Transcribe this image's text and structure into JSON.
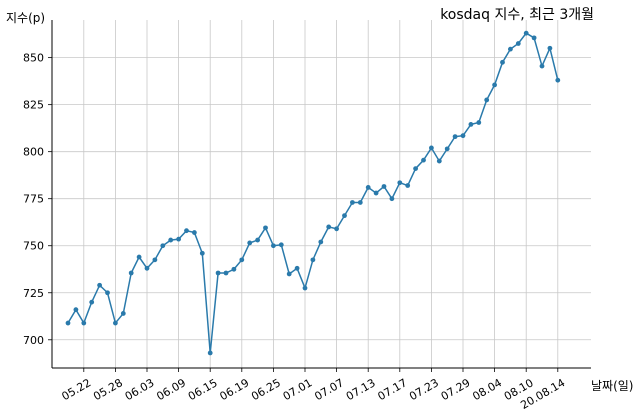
{
  "chart_data": {
    "type": "line",
    "title": "kosdaq 지수, 최근 3개월",
    "ylabel": "지수(p)",
    "xlabel": "날짜(일)",
    "ylim": [
      685,
      870
    ],
    "yticks": [
      700,
      725,
      750,
      775,
      800,
      825,
      850
    ],
    "xticks": [
      {
        "index": 2,
        "label": "05.22"
      },
      {
        "index": 6,
        "label": "05.28"
      },
      {
        "index": 10,
        "label": "06.03"
      },
      {
        "index": 14,
        "label": "06.09"
      },
      {
        "index": 18,
        "label": "06.15"
      },
      {
        "index": 22,
        "label": "06.19"
      },
      {
        "index": 26,
        "label": "06.25"
      },
      {
        "index": 30,
        "label": "07.01"
      },
      {
        "index": 34,
        "label": "07.07"
      },
      {
        "index": 38,
        "label": "07.13"
      },
      {
        "index": 42,
        "label": "07.17"
      },
      {
        "index": 46,
        "label": "07.23"
      },
      {
        "index": 50,
        "label": "07.29"
      },
      {
        "index": 54,
        "label": "08.04"
      },
      {
        "index": 58,
        "label": "08.10"
      },
      {
        "index": 62,
        "label": "20.08.14"
      }
    ],
    "grid": true,
    "line_color": "#2a7aab",
    "grid_color": "#c8c8c8",
    "series": [
      {
        "values": [
          708.9,
          716.0,
          708.9,
          720.0,
          729.0,
          725.0,
          708.9,
          714.0,
          735.5,
          744.0,
          738.0,
          742.5,
          750.0,
          753.0,
          753.5,
          758.0,
          757.0,
          746.0,
          693.0,
          735.5,
          735.5,
          737.5,
          742.5,
          751.5,
          753.0,
          759.5,
          750.0,
          750.5,
          735.0,
          738.0,
          727.5,
          742.5,
          752.0,
          760.0,
          759.0,
          766.0,
          773.0,
          773.0,
          781.0,
          778.0,
          781.5,
          775.0,
          783.5,
          782.0,
          791.0,
          795.5,
          802.0,
          795.0,
          801.5,
          808.0,
          808.5,
          814.5,
          815.5,
          827.5,
          835.5,
          847.5,
          854.5,
          857.5,
          863.0,
          860.5,
          845.5,
          855.0,
          838.0
        ]
      }
    ]
  }
}
